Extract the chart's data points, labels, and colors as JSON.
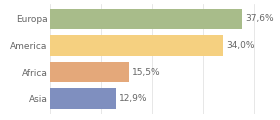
{
  "categories": [
    "Europa",
    "America",
    "Africa",
    "Asia"
  ],
  "values": [
    37.6,
    34.0,
    15.5,
    12.9
  ],
  "labels": [
    "37,6%",
    "34,0%",
    "15,5%",
    "12,9%"
  ],
  "bar_colors": [
    "#a8bc8a",
    "#f5d080",
    "#e4a87a",
    "#7f8fbf"
  ],
  "background_color": "#ffffff",
  "xlim": [
    0,
    44
  ],
  "label_fontsize": 6.5,
  "category_fontsize": 6.5,
  "bar_height": 0.78
}
